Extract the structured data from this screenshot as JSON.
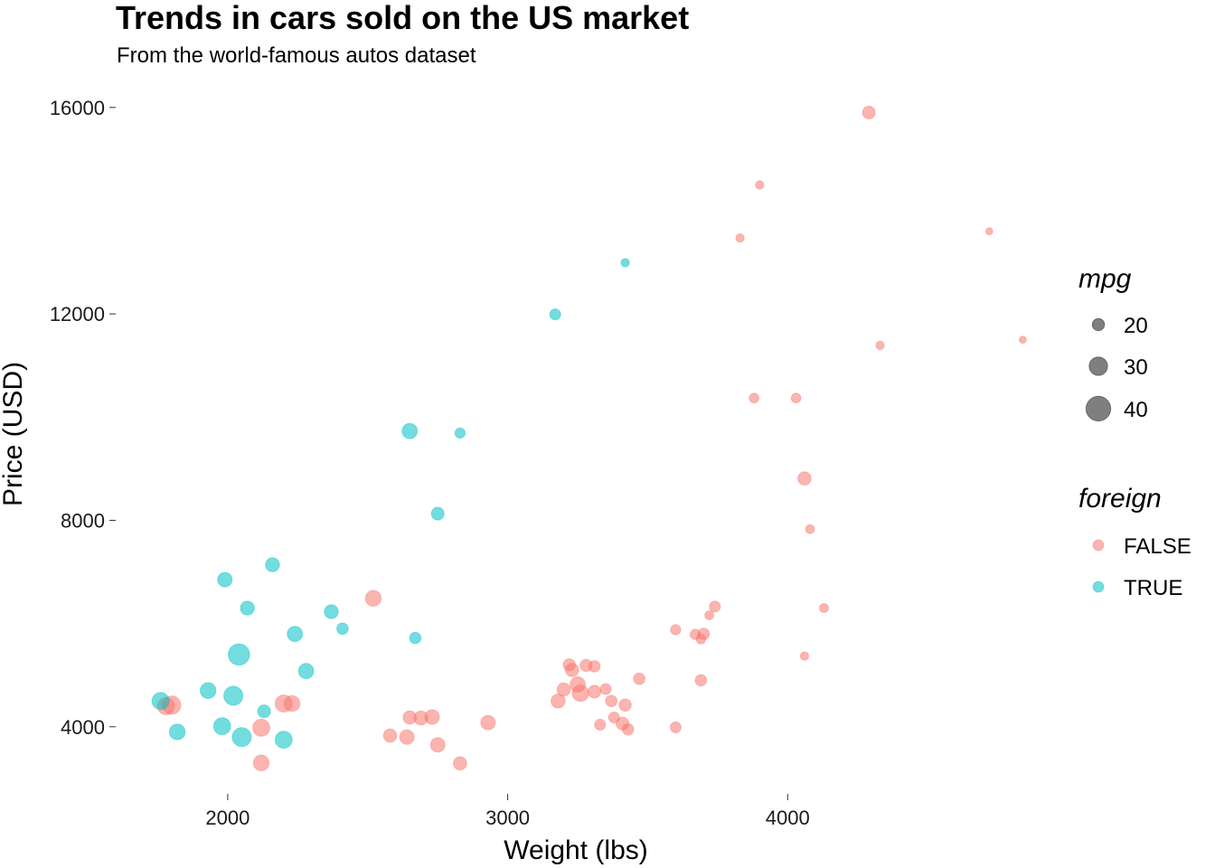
{
  "chart_data": {
    "type": "scatter",
    "title": "Trends in cars sold on the US market",
    "subtitle": "From the world-famous autos dataset",
    "xlabel": "Weight (lbs)",
    "ylabel": "Price (USD)",
    "xlim": [
      1600,
      4900
    ],
    "ylim": [
      2700,
      16400
    ],
    "xticks": [
      "2000",
      "3000",
      "4000"
    ],
    "yticks": [
      "4000",
      "8000",
      "12000",
      "16000"
    ],
    "grid": false,
    "size_legend": {
      "title": "mpg",
      "entries": [
        {
          "label": "20",
          "value": 20
        },
        {
          "label": "30",
          "value": 30
        },
        {
          "label": "40",
          "value": 40
        }
      ]
    },
    "color_legend": {
      "title": "foreign",
      "entries": [
        {
          "label": "FALSE",
          "color": "#F8766D"
        },
        {
          "label": "TRUE",
          "color": "#00BFC4"
        }
      ]
    },
    "series": [
      {
        "name": "FALSE",
        "color": "#F8766D",
        "points": [
          [
            4290,
            15900,
            21
          ],
          [
            3900,
            14500,
            14
          ],
          [
            3830,
            13470,
            14
          ],
          [
            4720,
            13600,
            12
          ],
          [
            4330,
            11390,
            14
          ],
          [
            4840,
            11500,
            12
          ],
          [
            3880,
            10370,
            16
          ],
          [
            4030,
            10370,
            16
          ],
          [
            4060,
            8810,
            22
          ],
          [
            4080,
            7830,
            15
          ],
          [
            4130,
            6300,
            15
          ],
          [
            4060,
            5370,
            14
          ],
          [
            3740,
            6330,
            18
          ],
          [
            3720,
            6160,
            15
          ],
          [
            3600,
            5880,
            17
          ],
          [
            3670,
            5790,
            17
          ],
          [
            3700,
            5800,
            19
          ],
          [
            3690,
            5700,
            16
          ],
          [
            2520,
            6490,
            26
          ],
          [
            3220,
            5200,
            20
          ],
          [
            3280,
            5190,
            20
          ],
          [
            3310,
            5170,
            19
          ],
          [
            3230,
            5100,
            22
          ],
          [
            3200,
            4720,
            22
          ],
          [
            3250,
            4820,
            25
          ],
          [
            3260,
            4650,
            27
          ],
          [
            3310,
            4680,
            21
          ],
          [
            3350,
            4730,
            18
          ],
          [
            3370,
            4500,
            19
          ],
          [
            3420,
            4420,
            20
          ],
          [
            3180,
            4500,
            23
          ],
          [
            3470,
            4930,
            19
          ],
          [
            3690,
            4900,
            19
          ],
          [
            3330,
            4040,
            18
          ],
          [
            3380,
            4180,
            18
          ],
          [
            3410,
            4060,
            21
          ],
          [
            3430,
            3950,
            19
          ],
          [
            3600,
            3990,
            18
          ],
          [
            1780,
            4400,
            28
          ],
          [
            1800,
            4420,
            30
          ],
          [
            2200,
            4450,
            28
          ],
          [
            2230,
            4450,
            26
          ],
          [
            2120,
            3980,
            28
          ],
          [
            2120,
            3300,
            26
          ],
          [
            2580,
            3830,
            22
          ],
          [
            2640,
            3800,
            24
          ],
          [
            2650,
            4180,
            22
          ],
          [
            2690,
            4170,
            23
          ],
          [
            2730,
            4190,
            24
          ],
          [
            2750,
            3650,
            24
          ],
          [
            2930,
            4080,
            24
          ],
          [
            2830,
            3290,
            22
          ]
        ]
      },
      {
        "name": "TRUE",
        "color": "#00BFC4",
        "points": [
          [
            3420,
            12990,
            14
          ],
          [
            3170,
            11990,
            18
          ],
          [
            2650,
            9730,
            25
          ],
          [
            2830,
            9690,
            17
          ],
          [
            2750,
            8130,
            21
          ],
          [
            1990,
            6850,
            24
          ],
          [
            2160,
            7140,
            23
          ],
          [
            2070,
            6300,
            23
          ],
          [
            2370,
            6230,
            23
          ],
          [
            2240,
            5800,
            25
          ],
          [
            2410,
            5900,
            19
          ],
          [
            2670,
            5720,
            19
          ],
          [
            2040,
            5400,
            35
          ],
          [
            2280,
            5080,
            25
          ],
          [
            1930,
            4700,
            26
          ],
          [
            2020,
            4600,
            31
          ],
          [
            1760,
            4500,
            28
          ],
          [
            2130,
            4300,
            21
          ],
          [
            1980,
            4010,
            28
          ],
          [
            1820,
            3900,
            26
          ],
          [
            2050,
            3800,
            31
          ],
          [
            2200,
            3750,
            28
          ]
        ]
      }
    ]
  }
}
